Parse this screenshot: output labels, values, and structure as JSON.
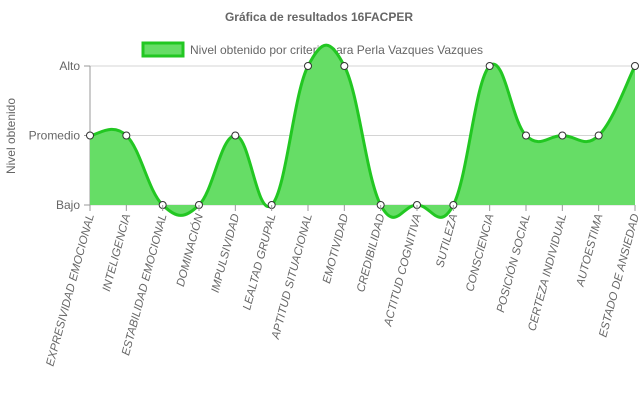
{
  "chart_data": {
    "type": "line",
    "fill": true,
    "title": "Gráfica de resultados 16FACPER",
    "ylabel": "Nivel obtenido",
    "xlabel": "",
    "y_levels": [
      "Bajo",
      "Promedio",
      "Alto"
    ],
    "ylim": [
      0,
      2
    ],
    "grid": true,
    "legend_position": "top",
    "categories": [
      "EXPRESIVIDAD EMOCIONAL",
      "INTELIGENCIA",
      "ESTABILIDAD EMOCIONAL",
      "DOMINACIÓN",
      "IMPULSIVIDAD",
      "LEALTAD GRUPAL",
      "APTITUD SITUACIONAL",
      "EMOTIVIDAD",
      "CREDIBILIDAD",
      "ACTITUD COGNITIVA",
      "SUTILEZA",
      "CONSCIENCIA",
      "POSICIÓN SOCIAL",
      "CERTEZA INDIVIDUAL",
      "AUTOESTIMA",
      "ESTADO DE ANSIEDAD"
    ],
    "series": [
      {
        "name": "Nivel obtenido por criterio para Perla Vazques Vazques",
        "values": [
          1,
          1,
          0,
          0,
          1,
          0,
          2,
          2,
          0,
          0,
          0,
          2,
          1,
          1,
          1,
          2
        ],
        "color": "#22c722",
        "fill_color": "#66dd66"
      }
    ]
  }
}
